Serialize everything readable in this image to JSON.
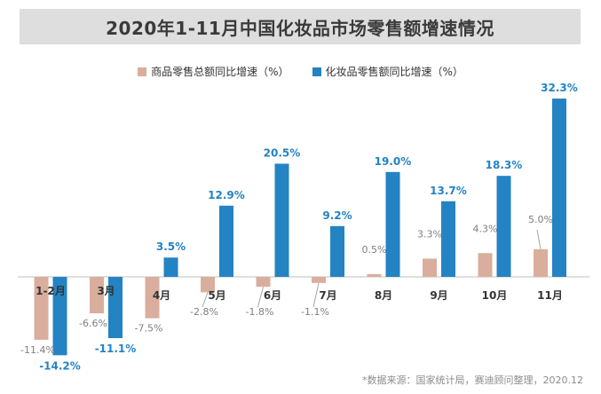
{
  "chart_data": {
    "type": "bar",
    "title": "2020年1-11月中国化妆品市场零售额增速情况",
    "categories": [
      "1-2月",
      "3月",
      "4月",
      "5月",
      "6月",
      "7月",
      "8月",
      "9月",
      "10月",
      "11月"
    ],
    "series": [
      {
        "name": "商品零售总额同比增速（%）",
        "color": "#d9ae9c",
        "values": [
          -11.4,
          -6.6,
          -7.5,
          -2.8,
          -1.8,
          -1.1,
          0.5,
          3.3,
          4.3,
          5.0
        ],
        "labels": [
          "-11.4%",
          "-6.6%",
          "-7.5%",
          "-2.8%",
          "-1.8%",
          "-1.1%",
          "0.5%",
          "3.3%",
          "4.3%",
          "5.0%"
        ]
      },
      {
        "name": "化妆品零售额同比增速（%）",
        "color": "#2483c3",
        "values": [
          -14.2,
          -11.1,
          3.5,
          12.9,
          20.5,
          9.2,
          19.0,
          13.7,
          18.3,
          32.3
        ],
        "labels": [
          "-14.2%",
          "-11.1%",
          "3.5%",
          "12.9%",
          "20.5%",
          "9.2%",
          "19.0%",
          "13.7%",
          "18.3%",
          "32.3%"
        ]
      }
    ],
    "ylim": [
      -18,
      35
    ],
    "xlabel": "",
    "ylabel": "",
    "legend": "top-center",
    "grid": false
  },
  "legend": {
    "series1": "商品零售总额同比增速（%）",
    "series2": "化妆品零售额同比增速（%）"
  },
  "source": "*数据来源：国家统计局，赛迪顾问整理，2020.12"
}
